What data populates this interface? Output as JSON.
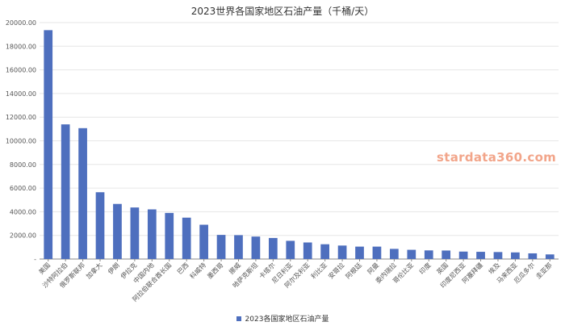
{
  "colors": {
    "bar": "#4e6fbe",
    "grid": "#e6e6e6",
    "axis": "#888888",
    "tick_text": "#555555",
    "watermark": "#f2a58a"
  },
  "watermark": "stardata360.com",
  "legend": {
    "label": "2023各国家地区石油产量"
  },
  "chart_data": {
    "type": "bar",
    "title": "2023世界各国家地区石油产量（千桶/天）",
    "xlabel": "",
    "ylabel": "",
    "ylim": [
      0,
      20000
    ],
    "yticks": [
      0,
      2000,
      4000,
      6000,
      8000,
      10000,
      12000,
      14000,
      16000,
      18000,
      20000
    ],
    "ytick_labels": [
      "-",
      "2000.00",
      "4000.00",
      "6000.00",
      "8000.00",
      "10000.00",
      "12000.00",
      "14000.00",
      "16000.00",
      "18000.00",
      "20000.00"
    ],
    "grid": true,
    "legend_position": "bottom",
    "categories": [
      "美国",
      "沙特阿拉伯",
      "俄罗斯联邦",
      "加拿大",
      "伊朗",
      "伊拉克",
      "中国内地",
      "阿拉伯联合酋长国",
      "巴西",
      "科威特",
      "墨西哥",
      "挪威",
      "哈萨克斯坦",
      "卡塔尔",
      "尼日利亚",
      "阿尔及利亚",
      "利比亚",
      "安哥拉",
      "阿根廷",
      "阿曼",
      "委内瑞拉",
      "哥伦比亚",
      "印度",
      "英国",
      "印度尼西亚",
      "阿塞拜疆",
      "埃及",
      "马来西亚",
      "厄瓜多尔",
      "圭亚那"
    ],
    "series": [
      {
        "name": "2023各国家地区石油产量",
        "values": [
          19360,
          11390,
          11070,
          5650,
          4660,
          4360,
          4200,
          3900,
          3500,
          2900,
          2040,
          2020,
          1900,
          1780,
          1540,
          1400,
          1250,
          1140,
          1050,
          1050,
          860,
          780,
          730,
          720,
          630,
          610,
          590,
          560,
          480,
          390
        ]
      }
    ]
  }
}
